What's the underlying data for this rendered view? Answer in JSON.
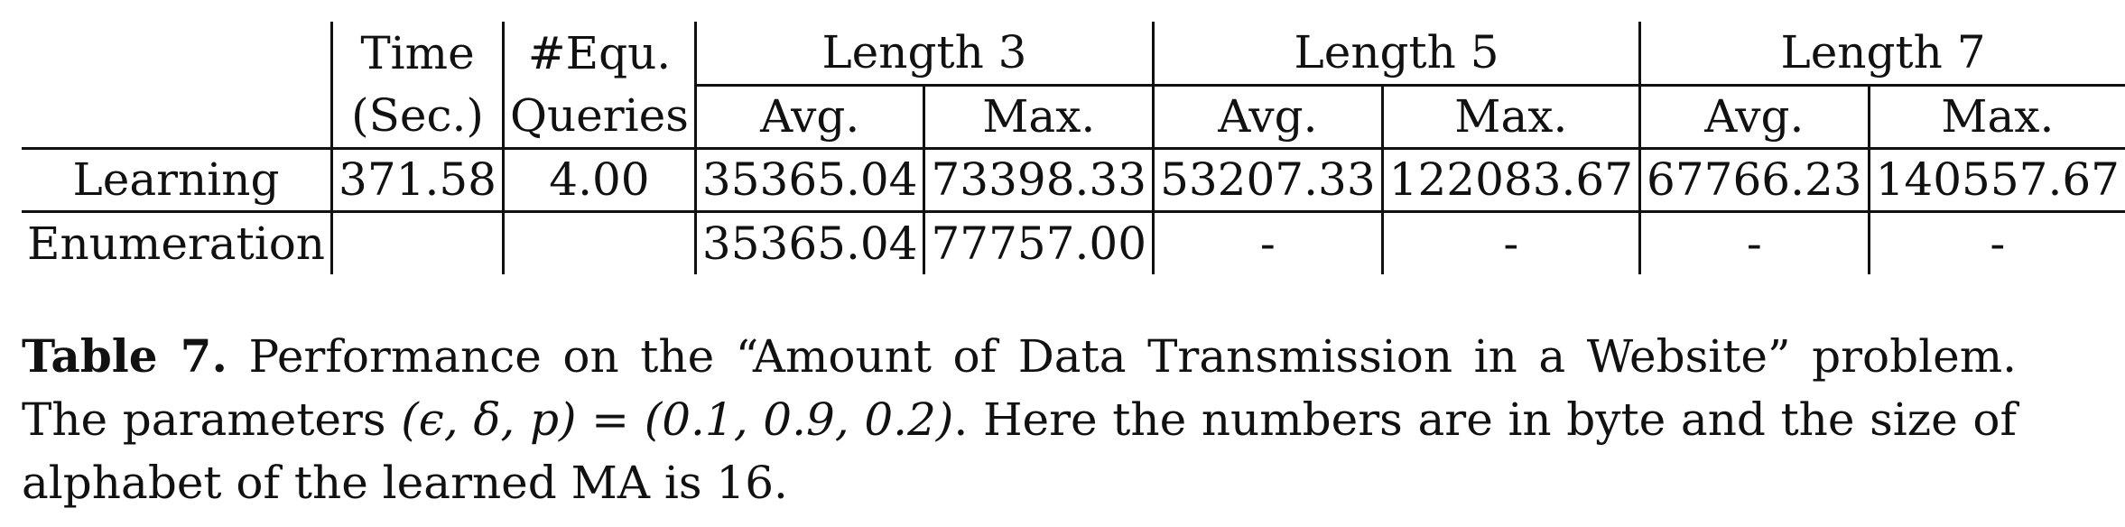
{
  "table": {
    "headers": {
      "time_top": "Time",
      "time_bottom": "(Sec.)",
      "equ_top": "#Equ.",
      "equ_bottom": "Queries",
      "groups": [
        "Length 3",
        "Length 5",
        "Length 7"
      ],
      "sub": [
        "Avg.",
        "Max.",
        "Avg.",
        "Max.",
        "Avg.",
        "Max."
      ]
    },
    "rows": [
      {
        "label": "Learning",
        "time": "371.58",
        "equ": "4.00",
        "cells": [
          "35365.04",
          "73398.33",
          "53207.33",
          "122083.67",
          "67766.23",
          "140557.67"
        ]
      },
      {
        "label": "Enumeration",
        "time": "",
        "equ": "",
        "cells": [
          "35365.04",
          "77757.00",
          "-",
          "-",
          "-",
          "-"
        ]
      }
    ]
  },
  "caption": {
    "label": "Table 7.",
    "line1": " Performance on the “Amount of Data Transmission in a Website” problem.",
    "line2_pre": "The parameters ",
    "params_math": "(ϵ, δ, p) = (0.1, 0.9, 0.2)",
    "line2_post": ". Here the numbers are in byte and the size of alphabet of the learned MA is 16."
  }
}
